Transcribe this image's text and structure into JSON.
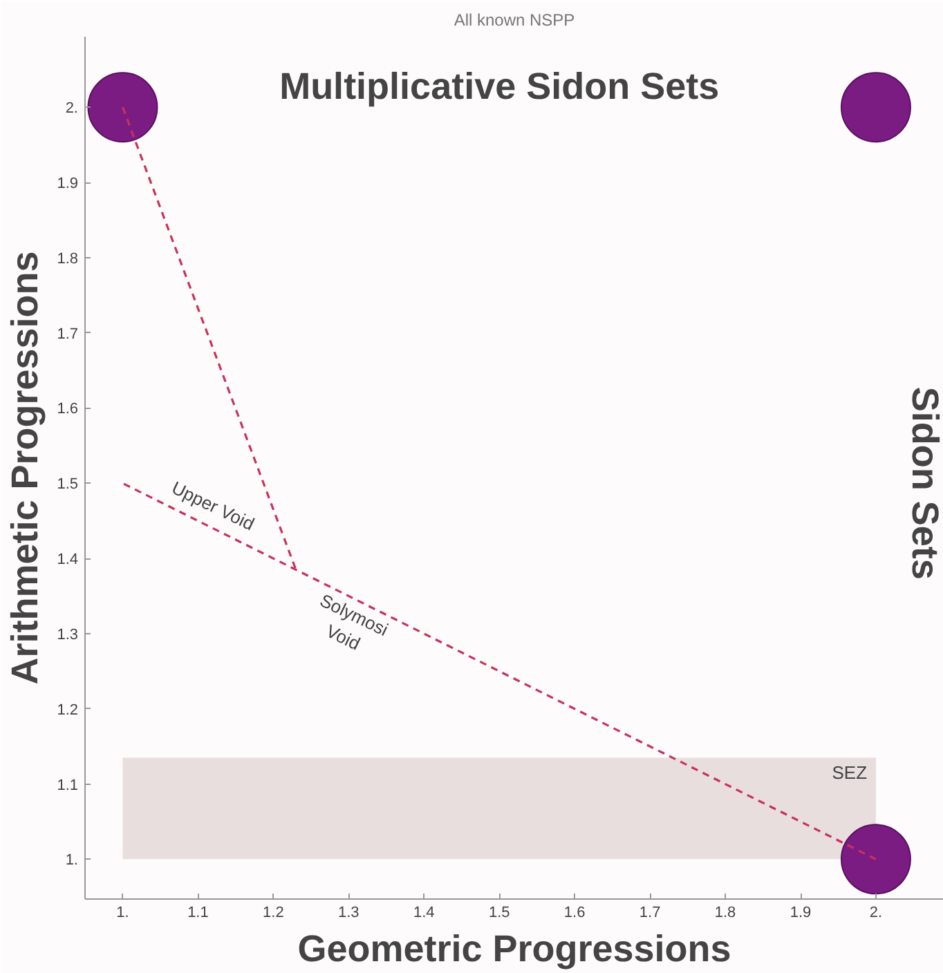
{
  "chart_data": {
    "type": "line",
    "title": "All known NSPP",
    "xlabel": "Geometric Progressions",
    "ylabel": "Arithmetic Progressions",
    "annotations": [
      "Multiplicative Sidon Sets",
      "Sidon Sets",
      "Upper Void",
      "Solymosi Void",
      "SEZ"
    ],
    "series": [
      {
        "color": "#c8325a",
        "x": [
          1,
          1.23
        ],
        "values": [
          2,
          1.385
        ],
        "line_style": "dashed",
        "marker": "none"
      },
      {
        "color": "#c8325a",
        "x": [
          2,
          1
        ],
        "values": [
          1,
          1.5
        ],
        "line_style": "dashed",
        "marker": "none"
      },
      {
        "type": "scatter",
        "color": "#7b1c83",
        "x": [
          1,
          2,
          2
        ],
        "values": [
          2,
          2,
          1
        ],
        "marker": "circle"
      }
    ],
    "bands": [
      {
        "axis": "y",
        "from": 1,
        "to": 1.135,
        "color": "#e8dede"
      }
    ],
    "xlim": [
      0.95,
      2.09
    ],
    "ylim": [
      0.947,
      2.094
    ],
    "xticks": [
      {
        "value": 1,
        "label": "1."
      },
      1.1,
      1.2,
      1.3,
      1.4,
      1.5,
      1.6,
      1.7,
      1.8,
      1.9,
      {
        "value": 2,
        "label": "2."
      }
    ],
    "yticks": [
      {
        "value": 1,
        "label": "1."
      },
      1.1,
      1.2,
      1.3,
      1.4,
      1.5,
      1.6,
      1.7,
      1.8,
      1.9,
      {
        "value": 2,
        "label": "2."
      }
    ],
    "grid": false
  }
}
